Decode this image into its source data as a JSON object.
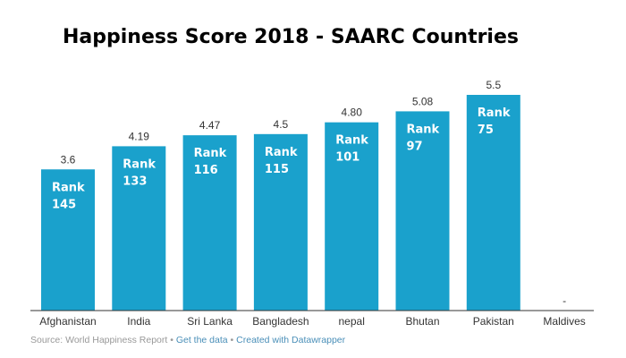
{
  "chart_data": {
    "type": "bar",
    "title": "Happiness Score 2018 - SAARC Countries",
    "categories": [
      "Afghanistan",
      "India",
      "Sri Lanka",
      "Bangladesh",
      "nepal",
      "Bhutan",
      "Pakistan",
      "Maldives"
    ],
    "values": [
      3.6,
      4.19,
      4.47,
      4.5,
      4.8,
      5.08,
      5.5,
      null
    ],
    "value_labels": [
      "3.6",
      "4.19",
      "4.47",
      "4.5",
      "4.80",
      "5.08",
      "5.5",
      "-"
    ],
    "rank_label": "Rank",
    "ranks": [
      "145",
      "133",
      "116",
      "115",
      "101",
      "97",
      "75",
      ""
    ],
    "ylim": [
      0,
      5.5
    ],
    "grid": false,
    "bar_color": "#1aa1cc",
    "legend": "none"
  },
  "footer": {
    "source": "Source: World Happiness Report",
    "separator": "•",
    "get_data": "Get the data",
    "created_with": "Created with Datawrapper"
  }
}
